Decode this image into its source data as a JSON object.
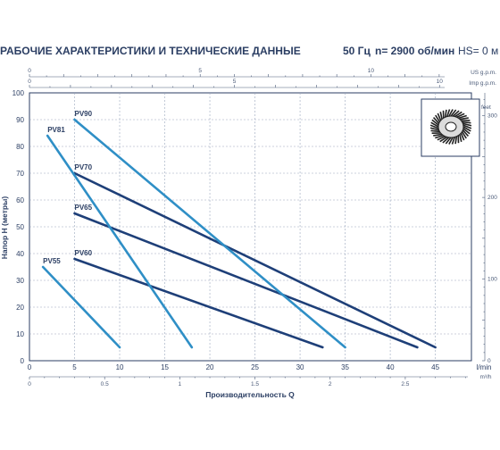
{
  "header": {
    "title": "РАБОЧИЕ ХАРАКТЕРИСТИКИ И ТЕХНИЧЕСКИЕ ДАННЫЕ",
    "frequency": "50 Гц",
    "speed": "n= 2900 об/мин",
    "hs": "HS= 0 м"
  },
  "chart_data": {
    "type": "line",
    "xlabel": "Производительность Q",
    "ylabel": "Напор H (метры)",
    "xunit": "l/min",
    "xlim": [
      0,
      50
    ],
    "ylim": [
      0,
      100
    ],
    "x_ticks": [
      "0",
      "5",
      "10",
      "15",
      "20",
      "25",
      "30",
      "35",
      "40",
      "45",
      "l/min"
    ],
    "y_ticks": [
      "0",
      "10",
      "20",
      "30",
      "40",
      "50",
      "60",
      "70",
      "80",
      "90",
      "100"
    ],
    "top_axes": [
      {
        "unit": "US g.p.m.",
        "ticks": [
          {
            "v": 0,
            "label": "0"
          },
          {
            "v": 5,
            "label": "5"
          },
          {
            "v": 10,
            "label": "10"
          }
        ],
        "per_lmin": 0.26417
      },
      {
        "unit": "Imp g.p.m.",
        "ticks": [
          {
            "v": 0,
            "label": "0"
          },
          {
            "v": 5,
            "label": "5"
          },
          {
            "v": 10,
            "label": "10"
          }
        ],
        "per_lmin": 0.21997
      }
    ],
    "bottom_axis": {
      "unit": "m³/h",
      "ticks": [
        {
          "v": 0,
          "label": "0"
        },
        {
          "v": 0.5,
          "label": "0.5"
        },
        {
          "v": 1,
          "label": "1"
        },
        {
          "v": 1.5,
          "label": "1.5"
        },
        {
          "v": 2,
          "label": "2"
        },
        {
          "v": 2.5,
          "label": "2.5"
        }
      ],
      "per_lmin": 0.06
    },
    "right_axis": {
      "unit": "feet",
      "ticks": [
        {
          "v": 0,
          "label": "0"
        },
        {
          "v": 100,
          "label": "100"
        },
        {
          "v": 200,
          "label": "200"
        },
        {
          "v": 300,
          "label": "300"
        }
      ],
      "per_m": 3.2808
    },
    "grid": true,
    "series": [
      {
        "name": "PV55",
        "color": "#2f8fc6",
        "x": [
          1.5,
          10
        ],
        "y": [
          35,
          5
        ]
      },
      {
        "name": "PV60",
        "color": "#1e3f78",
        "x": [
          5,
          32.5
        ],
        "y": [
          38,
          5
        ]
      },
      {
        "name": "PV65",
        "color": "#1e3f78",
        "x": [
          5,
          43
        ],
        "y": [
          55,
          5
        ]
      },
      {
        "name": "PV70",
        "color": "#1e3f78",
        "x": [
          5,
          45
        ],
        "y": [
          70,
          5
        ]
      },
      {
        "name": "PV81",
        "color": "#2f8fc6",
        "x": [
          2,
          18
        ],
        "y": [
          84,
          5
        ]
      },
      {
        "name": "PV90",
        "color": "#2f8fc6",
        "x": [
          5,
          35
        ],
        "y": [
          90,
          5
        ]
      }
    ]
  }
}
